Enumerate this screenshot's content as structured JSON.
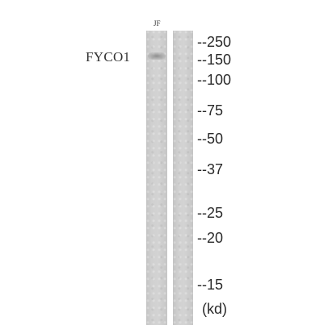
{
  "blot": {
    "lane_label": "JF",
    "protein_label": "FYCO1",
    "markers": [
      "--250",
      "--150",
      "--100",
      "--75",
      "--50",
      "--37",
      "--25",
      "--20",
      "--15"
    ],
    "unit_label": "(kd)"
  }
}
